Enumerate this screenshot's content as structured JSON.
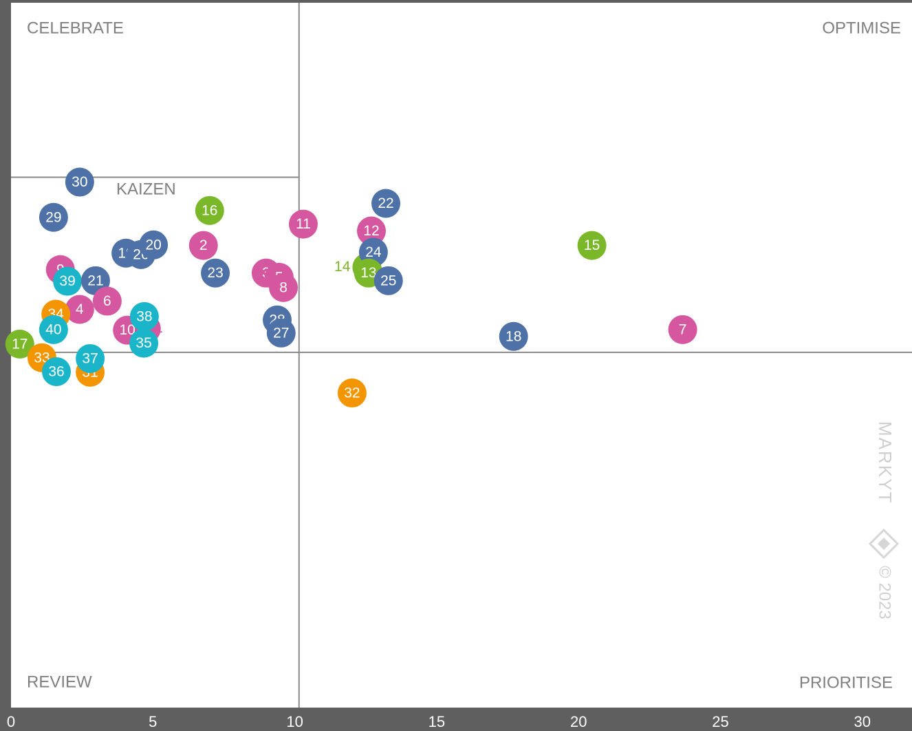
{
  "chart_data": {
    "type": "scatter",
    "quadrants": {
      "top_left": "CELEBRATE",
      "top_right": "OPTIMISE",
      "bottom_left": "REVIEW",
      "bottom_right": "PRIORITISE",
      "kaizen": "KAIZEN"
    },
    "watermark": "MARKYT",
    "copyright": "© 2023",
    "xlim": [
      0,
      31.75
    ],
    "ylim": [
      0,
      24.8
    ],
    "xticks": [
      0,
      5,
      10,
      15,
      20,
      25,
      30
    ],
    "dividers": {
      "x": 10.15,
      "y": 12.5,
      "kaizen_y": 18.66
    },
    "points": [
      {
        "label": "30",
        "x": 2.42,
        "y": 18.49,
        "color": "#4e72a8"
      },
      {
        "label": "29",
        "x": 1.5,
        "y": 17.25,
        "color": "#4e72a8"
      },
      {
        "label": "16",
        "x": 7.0,
        "y": 17.49,
        "color": "#7ab829"
      },
      {
        "label": "2",
        "x": 6.78,
        "y": 16.26,
        "color": "#d4579f"
      },
      {
        "label": "11",
        "x": 10.3,
        "y": 17.01,
        "color": "#d4579f"
      },
      {
        "label": "22",
        "x": 13.21,
        "y": 17.74,
        "color": "#4e72a8"
      },
      {
        "label": "12",
        "x": 12.7,
        "y": 16.77,
        "color": "#d4579f"
      },
      {
        "label": "15",
        "x": 20.47,
        "y": 16.26,
        "color": "#7ab829"
      },
      {
        "label": "14",
        "x": 12.54,
        "y": 15.49,
        "color": "#7ab829",
        "label_side": "left"
      },
      {
        "label": "24",
        "x": 12.77,
        "y": 16.02,
        "color": "#4e72a8"
      },
      {
        "label": "13",
        "x": 12.6,
        "y": 15.29,
        "color": "#7ab829"
      },
      {
        "label": "25",
        "x": 13.3,
        "y": 15.02,
        "color": "#4e72a8"
      },
      {
        "label": "19",
        "x": 4.05,
        "y": 15.99,
        "color": "#4e72a8"
      },
      {
        "label": "26",
        "x": 4.58,
        "y": 15.94,
        "color": "#4e72a8"
      },
      {
        "label": "20",
        "x": 5.02,
        "y": 16.28,
        "color": "#4e72a8"
      },
      {
        "label": "9",
        "x": 1.74,
        "y": 15.41,
        "color": "#d4579f"
      },
      {
        "label": "39",
        "x": 1.99,
        "y": 15.0,
        "color": "#1bb5c9"
      },
      {
        "label": "21",
        "x": 2.98,
        "y": 15.02,
        "color": "#4e72a8"
      },
      {
        "label": "23",
        "x": 7.2,
        "y": 15.29,
        "color": "#4e72a8"
      },
      {
        "label": "3",
        "x": 8.99,
        "y": 15.29,
        "color": "#d4579f"
      },
      {
        "label": "5",
        "x": 9.45,
        "y": 15.14,
        "color": "#d4579f"
      },
      {
        "label": "8",
        "x": 9.6,
        "y": 14.78,
        "color": "#d4579f"
      },
      {
        "label": "6",
        "x": 3.39,
        "y": 14.3,
        "color": "#d4579f"
      },
      {
        "label": "4",
        "x": 2.42,
        "y": 14.01,
        "color": "#d4579f"
      },
      {
        "label": "34",
        "x": 1.58,
        "y": 13.84,
        "color": "#f29500"
      },
      {
        "label": "40",
        "x": 1.5,
        "y": 13.3,
        "color": "#1bb5c9"
      },
      {
        "label": "1",
        "x": 4.77,
        "y": 13.33,
        "color": "#d4579f",
        "label_side": "right"
      },
      {
        "label": "10",
        "x": 4.1,
        "y": 13.28,
        "color": "#d4579f"
      },
      {
        "label": "38",
        "x": 4.7,
        "y": 13.76,
        "color": "#1bb5c9"
      },
      {
        "label": "35",
        "x": 4.68,
        "y": 12.82,
        "color": "#1bb5c9"
      },
      {
        "label": "28",
        "x": 9.38,
        "y": 13.64,
        "color": "#4e72a8"
      },
      {
        "label": "27",
        "x": 9.52,
        "y": 13.18,
        "color": "#4e72a8"
      },
      {
        "label": "18",
        "x": 17.71,
        "y": 13.06,
        "color": "#4e72a8"
      },
      {
        "label": "7",
        "x": 23.67,
        "y": 13.3,
        "color": "#d4579f"
      },
      {
        "label": "17",
        "x": 0.31,
        "y": 12.79,
        "color": "#7ab829"
      },
      {
        "label": "33",
        "x": 1.09,
        "y": 12.31,
        "color": "#f29500"
      },
      {
        "label": "31",
        "x": 2.79,
        "y": 11.8,
        "color": "#f29500"
      },
      {
        "label": "37",
        "x": 2.79,
        "y": 12.28,
        "color": "#1bb5c9"
      },
      {
        "label": "36",
        "x": 1.6,
        "y": 11.82,
        "color": "#1bb5c9"
      },
      {
        "label": "32",
        "x": 12.02,
        "y": 11.07,
        "color": "#f29500"
      }
    ]
  }
}
